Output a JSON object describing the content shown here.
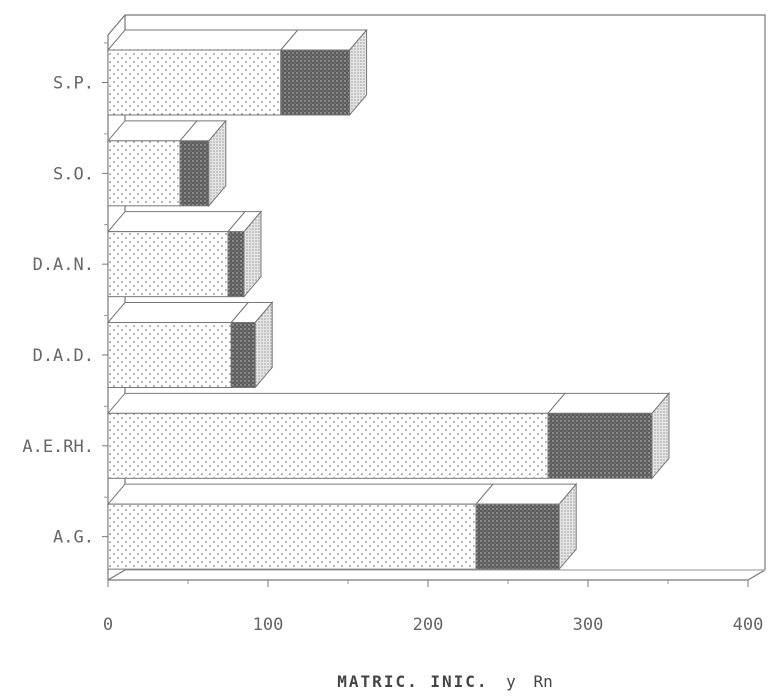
{
  "chart_data": {
    "type": "bar",
    "orientation": "horizontal",
    "stacked": true,
    "three_d": true,
    "categories": [
      "A.G.",
      "A.E.RH.",
      "D.A.D.",
      "D.A.N.",
      "S.O.",
      "S.P."
    ],
    "series": [
      {
        "values": [
          230,
          275,
          77,
          75,
          45,
          108
        ],
        "pattern": "light-dotted"
      },
      {
        "values": [
          52,
          65,
          15,
          10,
          18,
          43
        ],
        "pattern": "dark-dotted"
      }
    ],
    "x_ticks": [
      "0",
      "100",
      "200",
      "300",
      "400"
    ],
    "xlim": [
      0,
      400
    ],
    "xlabel_bold": "MATRIC. INIC.",
    "xlabel_conj": "y",
    "xlabel_rest": "Rn",
    "grid": false
  }
}
